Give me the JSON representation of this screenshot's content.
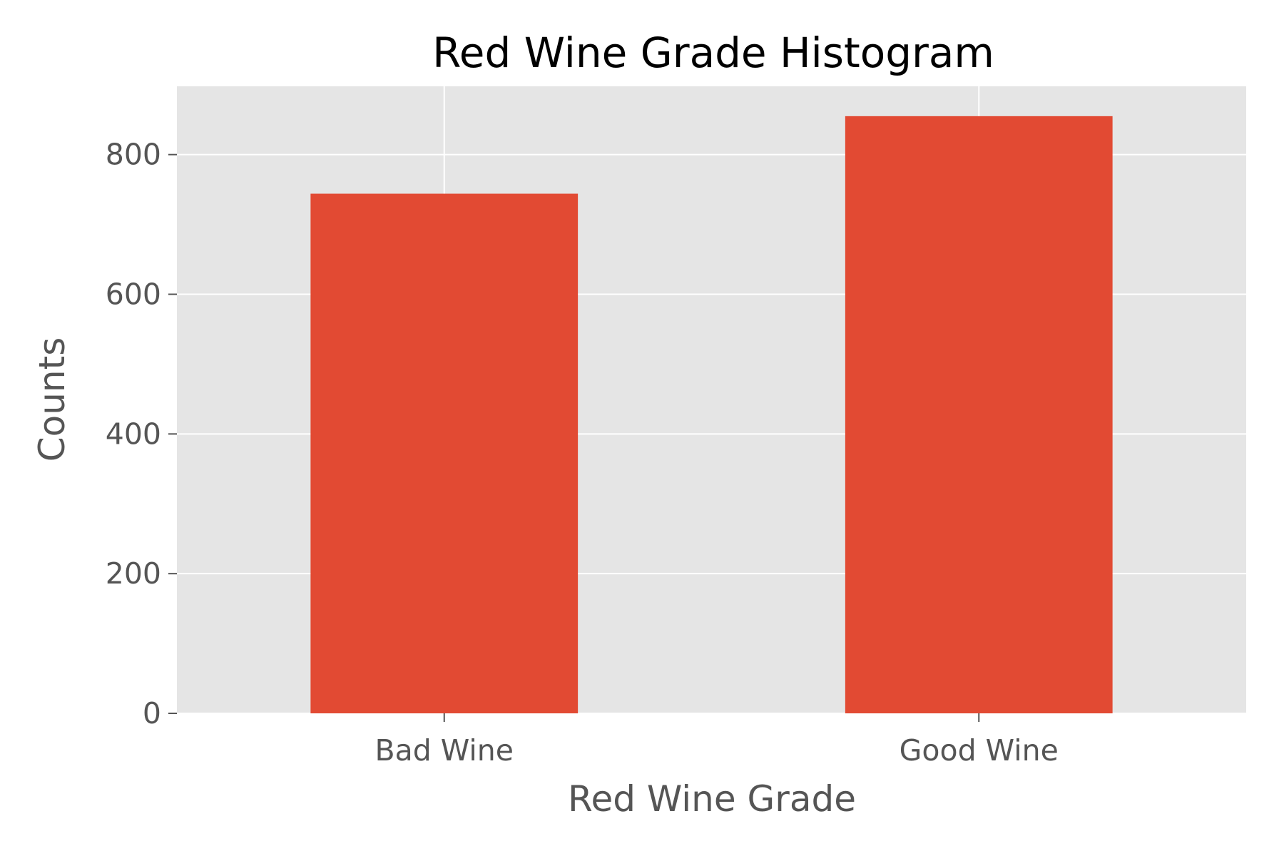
{
  "chart_data": {
    "type": "bar",
    "title": "Red Wine Grade Histogram",
    "xlabel": "Red Wine Grade",
    "ylabel": "Counts",
    "categories": [
      "Bad Wine",
      "Good Wine"
    ],
    "values": [
      744,
      855
    ],
    "ylim": [
      0,
      897.75
    ],
    "yticks": [
      0,
      200,
      400,
      600,
      800
    ],
    "grid": true,
    "legend": "none"
  },
  "colors": {
    "bar": "#e24a33",
    "plot_background": "#e5e5e5",
    "grid": "#ffffff",
    "tick_text": "#555555",
    "title_text": "#000000"
  }
}
